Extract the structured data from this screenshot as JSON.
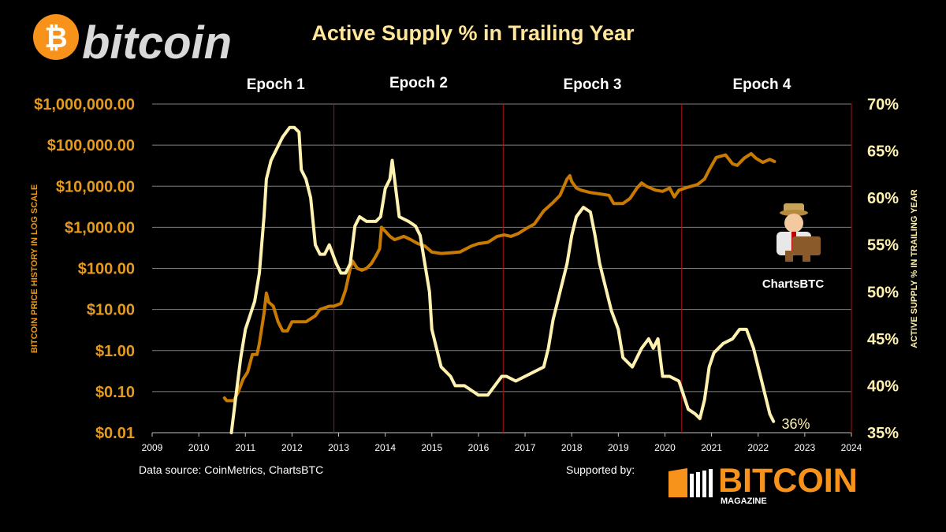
{
  "header": {
    "brand_glyph": "₿",
    "brand_word": "bitcoin",
    "title": "Active Supply % in Trailing Year"
  },
  "footer": {
    "source": "Data source: CoinMetrics, ChartsBTC",
    "supported_by": "Supported by:",
    "sponsor_name": "BITCOIN",
    "sponsor_sub": "MAGAZINE"
  },
  "badge": {
    "label": "ChartsBTC"
  },
  "colors": {
    "background": "#000000",
    "price_line": "#C97A00",
    "active_supply_line": "#FFF2B0",
    "left_axis_text": "#E59A1E",
    "right_axis_text": "#FFF2B0",
    "epoch_divider": "#B01010",
    "grid": "#7F7F7F",
    "brand_orange": "#F7931A",
    "title_color": "#FFE699",
    "sponsor_orange": "#F7931A"
  },
  "chart_data": {
    "type": "line",
    "xlim": [
      2009,
      2024
    ],
    "x_ticks": [
      "2009",
      "2010",
      "2011",
      "2012",
      "2013",
      "2014",
      "2015",
      "2016",
      "2017",
      "2018",
      "2019",
      "2020",
      "2021",
      "2022",
      "2023",
      "2024"
    ],
    "y_left": {
      "label": "BITCOIN PRICE HISTORY IN LOG SCALE",
      "scale": "log",
      "lim": [
        0.01,
        1000000
      ],
      "ticks": [
        0.01,
        0.1,
        1,
        10,
        100,
        1000,
        10000,
        100000,
        1000000
      ],
      "tick_labels": [
        "$0.01",
        "$0.10",
        "$1.00",
        "$10.00",
        "$100.00",
        "$1,000.00",
        "$10,000.00",
        "$100,000.00",
        "$1,000,000.00"
      ]
    },
    "y_right": {
      "label": "ACTIVE SUPPLY % IN TRAILING YEAR",
      "lim": [
        35,
        70
      ],
      "ticks": [
        35,
        40,
        45,
        50,
        55,
        60,
        65,
        70
      ],
      "tick_labels": [
        "35%",
        "40%",
        "45%",
        "50%",
        "55%",
        "60%",
        "65%",
        "70%"
      ]
    },
    "grid": true,
    "epochs": [
      {
        "label": "Epoch 1"
      },
      {
        "label": "Epoch 2"
      },
      {
        "label": "Epoch 3"
      },
      {
        "label": "Epoch 4"
      }
    ],
    "halvings": [
      2012.9,
      2016.53,
      2020.36
    ],
    "annotation": {
      "text": "36%",
      "x": 2022.3,
      "y": 36
    },
    "series": [
      {
        "axis": "left",
        "color": "#C97A00",
        "points": [
          [
            2010.55,
            0.07
          ],
          [
            2010.6,
            0.06
          ],
          [
            2010.75,
            0.06
          ],
          [
            2010.85,
            0.1
          ],
          [
            2010.95,
            0.2
          ],
          [
            2011.05,
            0.3
          ],
          [
            2011.15,
            0.8
          ],
          [
            2011.25,
            0.8
          ],
          [
            2011.3,
            1.5
          ],
          [
            2011.4,
            8
          ],
          [
            2011.45,
            25
          ],
          [
            2011.5,
            15
          ],
          [
            2011.6,
            12
          ],
          [
            2011.7,
            5
          ],
          [
            2011.8,
            3
          ],
          [
            2011.9,
            3
          ],
          [
            2012.0,
            5
          ],
          [
            2012.1,
            5
          ],
          [
            2012.3,
            5
          ],
          [
            2012.5,
            7
          ],
          [
            2012.6,
            10
          ],
          [
            2012.8,
            12
          ],
          [
            2012.9,
            12
          ],
          [
            2013.05,
            14
          ],
          [
            2013.15,
            30
          ],
          [
            2013.25,
            100
          ],
          [
            2013.3,
            150
          ],
          [
            2013.4,
            100
          ],
          [
            2013.5,
            90
          ],
          [
            2013.6,
            100
          ],
          [
            2013.7,
            130
          ],
          [
            2013.8,
            200
          ],
          [
            2013.88,
            300
          ],
          [
            2013.92,
            1000
          ],
          [
            2014.0,
            800
          ],
          [
            2014.1,
            600
          ],
          [
            2014.2,
            500
          ],
          [
            2014.4,
            600
          ],
          [
            2014.55,
            500
          ],
          [
            2014.7,
            400
          ],
          [
            2014.85,
            350
          ],
          [
            2015.0,
            250
          ],
          [
            2015.2,
            230
          ],
          [
            2015.4,
            240
          ],
          [
            2015.6,
            250
          ],
          [
            2015.85,
            350
          ],
          [
            2016.0,
            400
          ],
          [
            2016.2,
            430
          ],
          [
            2016.4,
            600
          ],
          [
            2016.55,
            650
          ],
          [
            2016.7,
            600
          ],
          [
            2016.85,
            700
          ],
          [
            2017.0,
            900
          ],
          [
            2017.2,
            1200
          ],
          [
            2017.4,
            2500
          ],
          [
            2017.6,
            4000
          ],
          [
            2017.75,
            6000
          ],
          [
            2017.9,
            15000
          ],
          [
            2017.96,
            18000
          ],
          [
            2018.0,
            13000
          ],
          [
            2018.1,
            9000
          ],
          [
            2018.2,
            8000
          ],
          [
            2018.4,
            7000
          ],
          [
            2018.6,
            6500
          ],
          [
            2018.8,
            6000
          ],
          [
            2018.9,
            3800
          ],
          [
            2019.1,
            3800
          ],
          [
            2019.25,
            5000
          ],
          [
            2019.4,
            9000
          ],
          [
            2019.5,
            12000
          ],
          [
            2019.6,
            10000
          ],
          [
            2019.8,
            8000
          ],
          [
            2019.95,
            7500
          ],
          [
            2020.1,
            9000
          ],
          [
            2020.2,
            5500
          ],
          [
            2020.3,
            8000
          ],
          [
            2020.5,
            9500
          ],
          [
            2020.7,
            11000
          ],
          [
            2020.85,
            15000
          ],
          [
            2020.95,
            25000
          ],
          [
            2021.1,
            50000
          ],
          [
            2021.3,
            58000
          ],
          [
            2021.45,
            35000
          ],
          [
            2021.55,
            32000
          ],
          [
            2021.7,
            48000
          ],
          [
            2021.85,
            62000
          ],
          [
            2021.95,
            48000
          ],
          [
            2022.1,
            38000
          ],
          [
            2022.25,
            45000
          ],
          [
            2022.35,
            40000
          ]
        ]
      },
      {
        "axis": "right",
        "color": "#FFF2B0",
        "points": [
          [
            2010.7,
            35
          ],
          [
            2010.8,
            39
          ],
          [
            2010.9,
            43
          ],
          [
            2011.0,
            46
          ],
          [
            2011.2,
            49
          ],
          [
            2011.3,
            52
          ],
          [
            2011.4,
            58
          ],
          [
            2011.45,
            62
          ],
          [
            2011.55,
            64
          ],
          [
            2011.65,
            65
          ],
          [
            2011.8,
            66.5
          ],
          [
            2011.95,
            67.5
          ],
          [
            2012.05,
            67.5
          ],
          [
            2012.15,
            67
          ],
          [
            2012.2,
            63
          ],
          [
            2012.3,
            62
          ],
          [
            2012.4,
            60
          ],
          [
            2012.5,
            55
          ],
          [
            2012.6,
            54
          ],
          [
            2012.7,
            54
          ],
          [
            2012.8,
            55
          ],
          [
            2012.95,
            53
          ],
          [
            2013.05,
            52
          ],
          [
            2013.15,
            52
          ],
          [
            2013.25,
            53
          ],
          [
            2013.35,
            57
          ],
          [
            2013.45,
            58
          ],
          [
            2013.6,
            57.5
          ],
          [
            2013.8,
            57.5
          ],
          [
            2013.9,
            58
          ],
          [
            2014.0,
            61
          ],
          [
            2014.1,
            62
          ],
          [
            2014.15,
            64
          ],
          [
            2014.2,
            62
          ],
          [
            2014.3,
            58
          ],
          [
            2014.5,
            57.5
          ],
          [
            2014.65,
            57
          ],
          [
            2014.75,
            56
          ],
          [
            2014.85,
            53
          ],
          [
            2014.95,
            50
          ],
          [
            2015.0,
            46
          ],
          [
            2015.1,
            44
          ],
          [
            2015.2,
            42
          ],
          [
            2015.4,
            41
          ],
          [
            2015.5,
            40
          ],
          [
            2015.7,
            40
          ],
          [
            2015.85,
            39.5
          ],
          [
            2016.0,
            39
          ],
          [
            2016.2,
            39
          ],
          [
            2016.35,
            40
          ],
          [
            2016.5,
            41
          ],
          [
            2016.6,
            41
          ],
          [
            2016.8,
            40.5
          ],
          [
            2017.0,
            41
          ],
          [
            2017.2,
            41.5
          ],
          [
            2017.4,
            42
          ],
          [
            2017.5,
            44
          ],
          [
            2017.6,
            47
          ],
          [
            2017.75,
            50
          ],
          [
            2017.9,
            53
          ],
          [
            2018.0,
            56
          ],
          [
            2018.1,
            58
          ],
          [
            2018.25,
            59
          ],
          [
            2018.4,
            58.5
          ],
          [
            2018.5,
            56
          ],
          [
            2018.6,
            53
          ],
          [
            2018.75,
            50
          ],
          [
            2018.85,
            48
          ],
          [
            2019.0,
            46
          ],
          [
            2019.1,
            43
          ],
          [
            2019.3,
            42
          ],
          [
            2019.5,
            44
          ],
          [
            2019.65,
            45
          ],
          [
            2019.75,
            44
          ],
          [
            2019.85,
            45
          ],
          [
            2019.95,
            41
          ],
          [
            2020.1,
            41
          ],
          [
            2020.3,
            40.5
          ],
          [
            2020.4,
            39
          ],
          [
            2020.5,
            37.5
          ],
          [
            2020.65,
            37
          ],
          [
            2020.75,
            36.5
          ],
          [
            2020.85,
            38.5
          ],
          [
            2020.95,
            42
          ],
          [
            2021.05,
            43.5
          ],
          [
            2021.25,
            44.5
          ],
          [
            2021.45,
            45
          ],
          [
            2021.6,
            46
          ],
          [
            2021.75,
            46
          ],
          [
            2021.9,
            44
          ],
          [
            2022.05,
            41
          ],
          [
            2022.15,
            39
          ],
          [
            2022.25,
            37
          ],
          [
            2022.33,
            36.2
          ]
        ]
      }
    ]
  }
}
